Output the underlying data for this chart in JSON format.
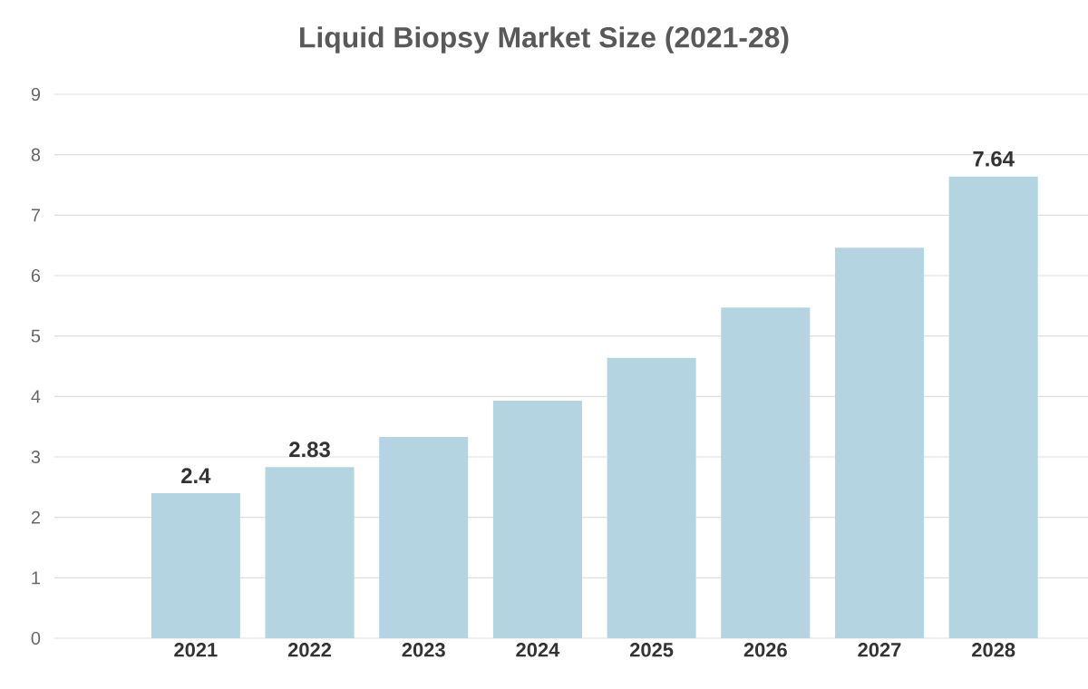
{
  "chart_data": {
    "type": "bar",
    "title": "Liquid Biopsy Market Size (2021-28)",
    "categories": [
      "2021",
      "2022",
      "2023",
      "2024",
      "2025",
      "2026",
      "2027",
      "2028"
    ],
    "values": [
      2.4,
      2.83,
      3.33,
      3.93,
      4.64,
      5.47,
      6.46,
      7.64
    ],
    "value_labels": [
      "2.4",
      "2.83",
      null,
      null,
      null,
      null,
      null,
      "7.64"
    ],
    "color": "#b3d4e0",
    "ylim": [
      0,
      9
    ],
    "yticks": [
      0,
      1,
      2,
      3,
      4,
      5,
      6,
      7,
      8,
      9
    ],
    "grid": "y"
  }
}
